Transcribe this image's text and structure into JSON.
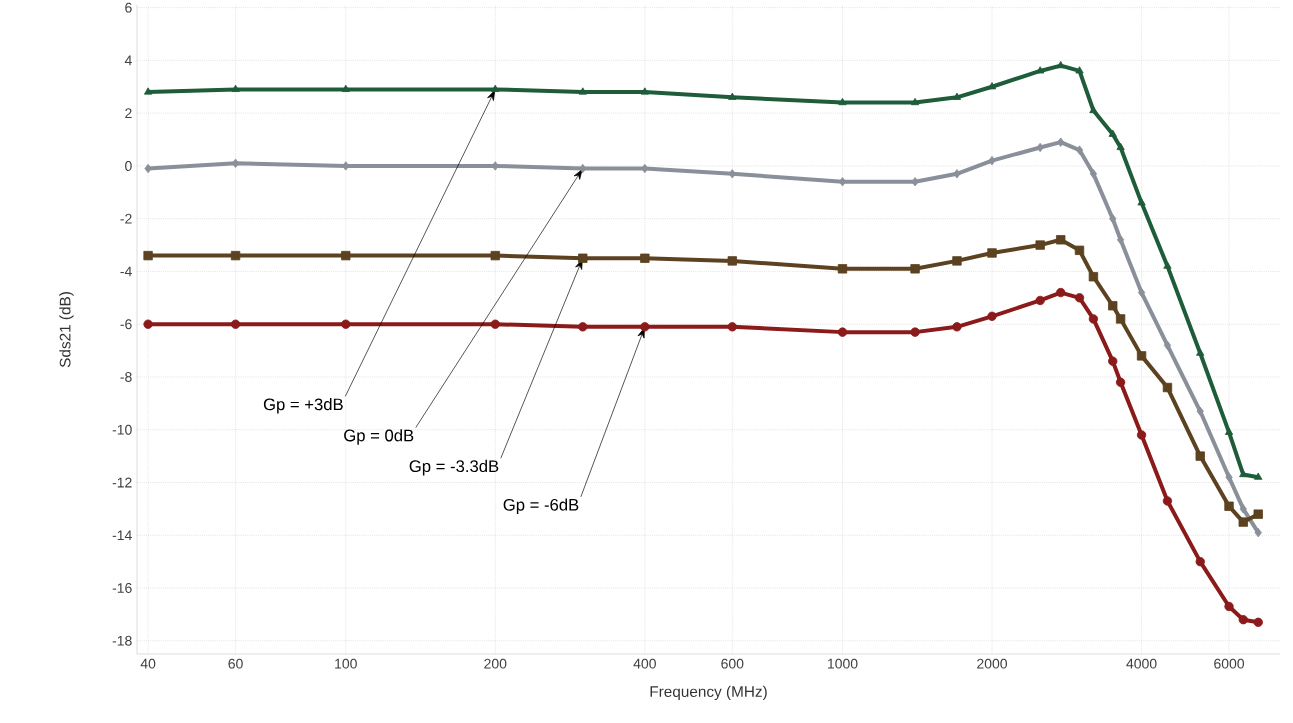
{
  "chart_data": {
    "type": "line",
    "xlabel": "Frequency (MHz)",
    "ylabel": "Sds21 (dB)",
    "log": "x",
    "grid": true,
    "line_style": "solid",
    "xlim": [
      38,
      7600
    ],
    "ylim": [
      -18.5,
      6.1
    ],
    "xticks": [
      40,
      60,
      100,
      200,
      400,
      600,
      1000,
      2000,
      4000,
      6000
    ],
    "yticks": [
      -18,
      -16,
      -14,
      -12,
      -10,
      -8,
      -6,
      -4,
      -2,
      0,
      2,
      4,
      6
    ],
    "x": [
      40,
      60,
      100,
      200,
      300,
      400,
      600,
      1000,
      1400,
      1700,
      2000,
      2500,
      2750,
      3000,
      3200,
      3500,
      3630,
      4000,
      4510,
      5250,
      6000,
      6410,
      6870
    ],
    "series": [
      {
        "color": "#1e5c3a",
        "marker": "triangle",
        "values": [
          2.8,
          2.9,
          2.9,
          2.9,
          2.8,
          2.8,
          2.6,
          2.4,
          2.4,
          2.6,
          3.0,
          3.6,
          3.8,
          3.6,
          2.1,
          1.2,
          0.7,
          -1.4,
          -3.8,
          -7.1,
          -10.1,
          -11.7,
          -11.8
        ]
      },
      {
        "color": "#8a9099",
        "marker": "diamond",
        "values": [
          -0.1,
          0.1,
          0.0,
          0.0,
          -0.1,
          -0.1,
          -0.3,
          -0.6,
          -0.6,
          -0.3,
          0.2,
          0.7,
          0.9,
          0.6,
          -0.3,
          -2.0,
          -2.8,
          -4.8,
          -6.8,
          -9.3,
          -11.8,
          -13.0,
          -13.9
        ]
      },
      {
        "color": "#5c4220",
        "marker": "square",
        "values": [
          -3.4,
          -3.4,
          -3.4,
          -3.4,
          -3.5,
          -3.5,
          -3.6,
          -3.9,
          -3.9,
          -3.6,
          -3.3,
          -3.0,
          -2.8,
          -3.2,
          -4.2,
          -5.3,
          -5.8,
          -7.2,
          -8.4,
          -11.0,
          -12.9,
          -13.5,
          -13.2
        ]
      },
      {
        "color": "#8b1a1a",
        "marker": "circle",
        "values": [
          -6.0,
          -6.0,
          -6.0,
          -6.0,
          -6.1,
          -6.1,
          -6.1,
          -6.3,
          -6.3,
          -6.1,
          -5.7,
          -5.1,
          -4.8,
          -5.0,
          -5.8,
          -7.4,
          -8.2,
          -10.2,
          -12.7,
          -15.0,
          -16.7,
          -17.2,
          -17.3
        ]
      }
    ],
    "annotations": [
      {
        "text": "Gp = +3dB",
        "x": 200,
        "y": 2.9
      },
      {
        "text": "Gp = 0dB",
        "x": 300,
        "y": -0.1
      },
      {
        "text": "Gp = -3.3dB",
        "x": 300,
        "y": -3.5
      },
      {
        "text": "Gp = -6dB",
        "x": 400,
        "y": -6.1
      }
    ]
  }
}
